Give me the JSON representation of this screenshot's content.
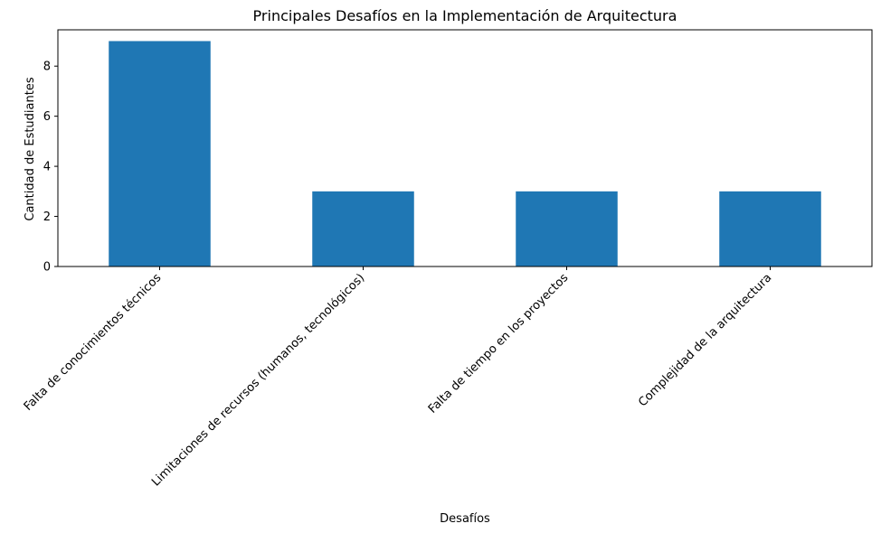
{
  "chart_data": {
    "type": "bar",
    "title": "Principales Desafíos en la Implementación de Arquitectura",
    "xlabel": "Desafíos",
    "ylabel": "Cantidad de Estudiantes",
    "categories": [
      "Falta de conocimientos técnicos",
      "Limitaciones de recursos (humanos, tecnológicos)",
      "Falta de tiempo en los proyectos",
      "Complejidad de la arquitectura"
    ],
    "values": [
      9,
      3,
      3,
      3
    ],
    "ylim": [
      0,
      9.45
    ],
    "yticks": [
      0,
      2,
      4,
      6,
      8
    ],
    "bar_color": "#1f77b4",
    "grid": false,
    "legend": false
  }
}
